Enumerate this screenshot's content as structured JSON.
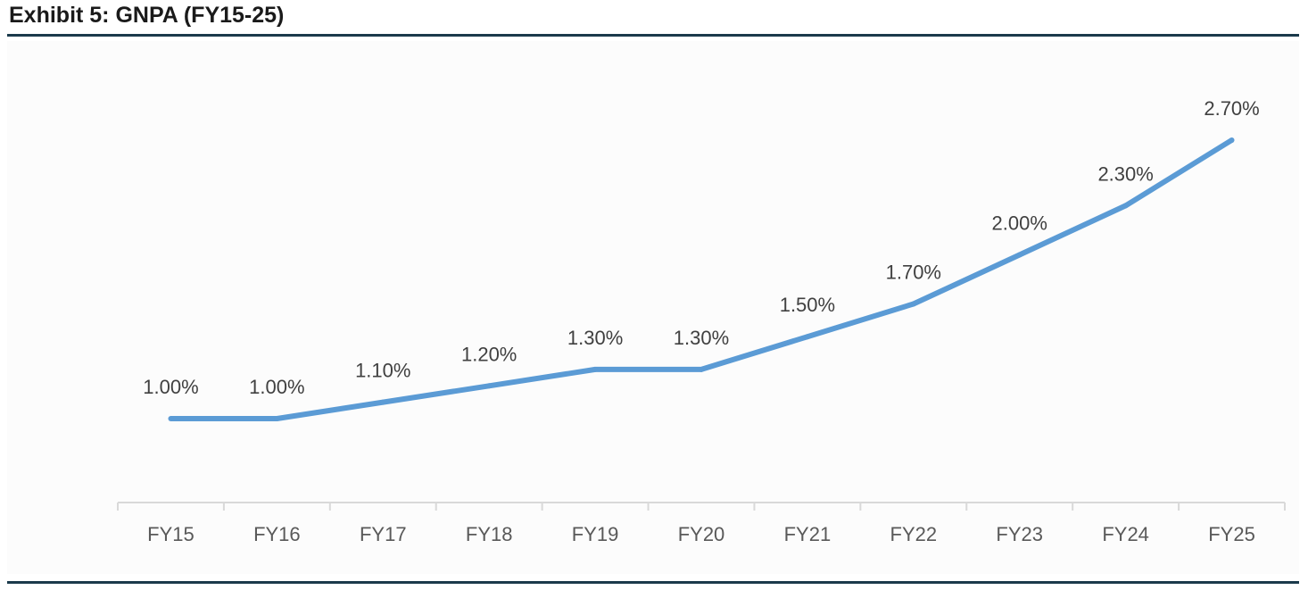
{
  "header": {
    "title": "Exhibit 5: GNPA (FY15-25)"
  },
  "chart_data": {
    "type": "line",
    "title": "Exhibit 5: GNPA (FY15-25)",
    "xlabel": "",
    "ylabel": "",
    "categories": [
      "FY15",
      "FY16",
      "FY17",
      "FY18",
      "FY19",
      "FY20",
      "FY21",
      "FY22",
      "FY23",
      "FY24",
      "FY25"
    ],
    "series": [
      {
        "values": [
          1.0,
          1.0,
          1.1,
          1.2,
          1.3,
          1.3,
          1.5,
          1.7,
          2.0,
          2.3,
          2.7
        ],
        "labels": [
          "1.00%",
          "1.00%",
          "1.10%",
          "1.20%",
          "1.30%",
          "1.30%",
          "1.50%",
          "1.70%",
          "2.00%",
          "2.30%",
          "2.70%"
        ],
        "color": "#5b9bd5"
      }
    ],
    "grid": false,
    "legend": "none",
    "axis_color": "#d9d9d9"
  }
}
